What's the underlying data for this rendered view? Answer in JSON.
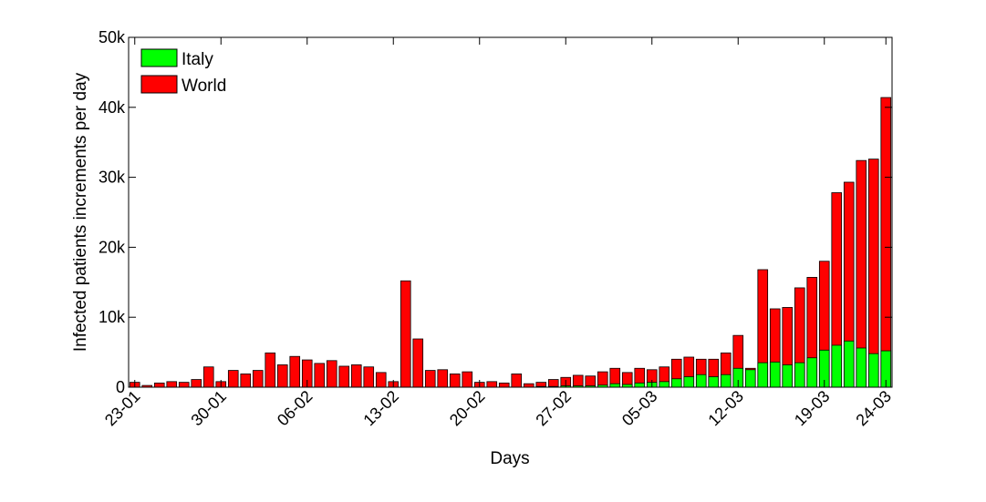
{
  "chart_data": {
    "type": "bar",
    "xlabel": "Days",
    "ylabel": "Infected patients increments per day",
    "ylim": [
      0,
      50000
    ],
    "yticks": [
      0,
      10000,
      20000,
      30000,
      40000,
      50000
    ],
    "ytick_labels": [
      "0",
      "10k",
      "20k",
      "30k",
      "40k",
      "50k"
    ],
    "xtick_labels": [
      "23-01",
      "30-01",
      "06-02",
      "13-02",
      "20-02",
      "27-02",
      "05-03",
      "12-03",
      "19-03",
      "24-03"
    ],
    "xtick_indices": [
      0,
      7,
      14,
      21,
      28,
      35,
      42,
      49,
      56,
      61
    ],
    "categories": [
      "23-01",
      "24-01",
      "25-01",
      "26-01",
      "27-01",
      "28-01",
      "29-01",
      "30-01",
      "31-01",
      "01-02",
      "02-02",
      "03-02",
      "04-02",
      "05-02",
      "06-02",
      "07-02",
      "08-02",
      "09-02",
      "10-02",
      "11-02",
      "12-02",
      "13-02",
      "14-02",
      "15-02",
      "16-02",
      "17-02",
      "18-02",
      "19-02",
      "20-02",
      "21-02",
      "22-02",
      "23-02",
      "24-02",
      "25-02",
      "26-02",
      "27-02",
      "28-02",
      "29-02",
      "01-03",
      "02-03",
      "03-03",
      "04-03",
      "05-03",
      "06-03",
      "07-03",
      "08-03",
      "09-03",
      "10-03",
      "11-03",
      "12-03",
      "13-03",
      "14-03",
      "15-03",
      "16-03",
      "17-03",
      "18-03",
      "19-03",
      "20-03",
      "21-03",
      "22-03",
      "23-03",
      "24-03"
    ],
    "legend_position": "top-left",
    "grid": false,
    "series": [
      {
        "name": "World",
        "color": "#ff0000",
        "values": [
          700,
          250,
          600,
          800,
          700,
          1100,
          2900,
          800,
          2400,
          1900,
          2400,
          4900,
          3200,
          4400,
          3900,
          3400,
          3800,
          3000,
          3200,
          2900,
          2100,
          800,
          15200,
          6900,
          2400,
          2500,
          1900,
          2200,
          700,
          800,
          600,
          1900,
          500,
          700,
          1100,
          1400,
          1700,
          1600,
          2200,
          2700,
          2100,
          2700,
          2500,
          2900,
          4000,
          4300,
          4000,
          4000,
          4900,
          7400,
          2700,
          16800,
          11200,
          11400,
          14200,
          15700,
          18000,
          27800,
          29300,
          32400,
          32600,
          41400
        ]
      },
      {
        "name": "Italy",
        "color": "#00ff00",
        "values": [
          0,
          0,
          0,
          0,
          0,
          0,
          0,
          0,
          0,
          0,
          0,
          0,
          0,
          0,
          0,
          0,
          0,
          0,
          0,
          0,
          0,
          0,
          0,
          0,
          0,
          0,
          0,
          0,
          0,
          0,
          0,
          0,
          0,
          100,
          100,
          200,
          200,
          200,
          300,
          500,
          400,
          600,
          700,
          800,
          1200,
          1500,
          1800,
          1500,
          1800,
          2700,
          2500,
          3500,
          3600,
          3200,
          3500,
          4200,
          5300,
          6000,
          6600,
          5600,
          4800,
          5200
        ]
      }
    ]
  }
}
